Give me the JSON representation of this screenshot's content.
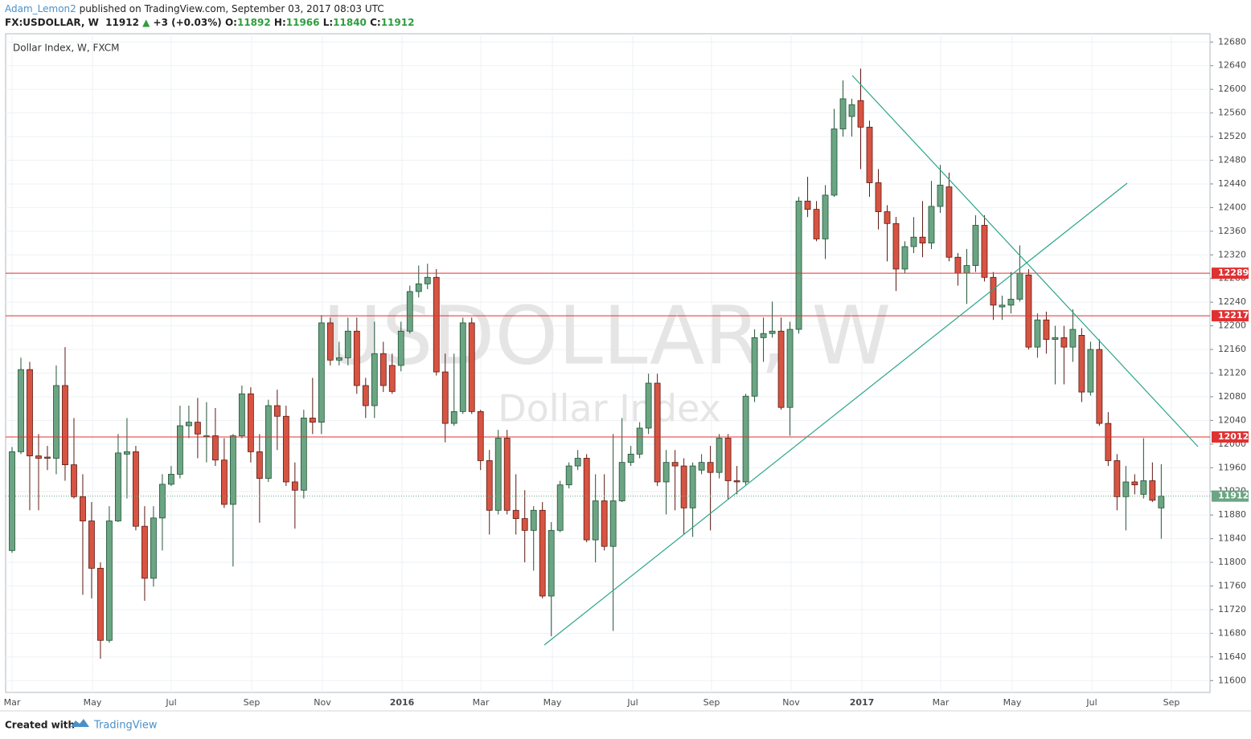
{
  "header": {
    "author": "Adam_Lemon2",
    "published": "published on TradingView.com, September 03, 2017 08:03 UTC",
    "symbol": "FX:USDOLLAR, W",
    "arrow": "▲",
    "change": "+3 (+0.03%)",
    "o_label": "O:",
    "h_label": "H:",
    "l_label": "L:",
    "c_label": "C:"
  },
  "footer": {
    "created": "Created with",
    "brand": "TradingView"
  },
  "chart_data": {
    "type": "candlestick",
    "legend": "Dollar Index, W, FXCM",
    "watermark": "USDOLLAR, W",
    "watermark_sub": "Dollar Index",
    "up_color": "#6ba583",
    "down_color": "#d75442",
    "x_axis_labels": [
      "Mar",
      "May",
      "Jul",
      "Sep",
      "Nov",
      "2016",
      "Mar",
      "May",
      "Jul",
      "Sep",
      "Nov",
      "2017",
      "Mar",
      "May",
      "Jul",
      "Sep"
    ],
    "ylim": [
      11580,
      12694
    ],
    "yticks": [
      11600,
      11640,
      11680,
      11720,
      11760,
      11800,
      11840,
      11880,
      11920,
      11960,
      12000,
      12040,
      12080,
      12120,
      12160,
      12200,
      12240,
      12280,
      12320,
      12360,
      12400,
      12440,
      12480,
      12520,
      12560,
      12600,
      12640,
      12680
    ],
    "grid": true,
    "hlines": [
      {
        "value": 12289,
        "color": "#e03131"
      },
      {
        "value": 12217,
        "color": "#e03131"
      },
      {
        "value": 12012,
        "color": "#e03131"
      }
    ],
    "open": [
      11820,
      11987,
      12126,
      11980,
      11978,
      11976,
      12099,
      11965,
      11911,
      11870,
      11790,
      11668,
      11870,
      11983,
      11987,
      11861,
      11773,
      11875,
      11932,
      11949,
      12031,
      12037,
      12013,
      12014,
      11973,
      11898,
      12014,
      12085,
      11987,
      11942,
      12065,
      12047,
      11936,
      11922,
      12044,
      12037,
      12205,
      12142,
      12146,
      12191,
      12099,
      12065,
      12153,
      12133,
      12133,
      12191,
      12258,
      12271,
      12282,
      12122,
      12035,
      12055,
      12205,
      12055,
      11972,
      11888,
      12010,
      11888,
      11874,
      11854,
      11888,
      11743,
      11854,
      11931,
      11963,
      11976,
      11838,
      11904,
      11827,
      11904,
      11969,
      11983,
      12027,
      12103,
      11936,
      11969,
      11963,
      11892,
      11956,
      11969,
      11952,
      12010,
      11938,
      11936,
      12081,
      12180,
      12187,
      12191,
      12062,
      12194,
      12411,
      12397,
      12347,
      12421,
      12533,
      12554,
      12581,
      12536,
      12442,
      12393,
      12373,
      12296,
      12334,
      12350,
      12340,
      12402,
      12435,
      12316,
      12289,
      12302,
      12370,
      12282,
      12232,
      12235,
      12245,
      12286,
      12164,
      12210,
      12177,
      12180,
      12164,
      12184,
      12088,
      12160,
      12035,
      11972,
      11911,
      11936,
      11915,
      11938,
      11892
    ],
    "high": [
      11995,
      12146,
      12139,
      12017,
      11997,
      12133,
      12164,
      12044,
      11949,
      11902,
      11800,
      11895,
      12017,
      12044,
      11997,
      11895,
      11895,
      11949,
      11963,
      12065,
      12065,
      12078,
      12071,
      12061,
      12010,
      12017,
      12099,
      12096,
      12017,
      12075,
      12092,
      12065,
      11969,
      12058,
      12112,
      12218,
      12214,
      12173,
      12214,
      12214,
      12112,
      12207,
      12173,
      12153,
      12207,
      12268,
      12302,
      12305,
      12296,
      12153,
      12153,
      12214,
      12214,
      12058,
      11990,
      12024,
      12024,
      11949,
      11922,
      11895,
      11902,
      11868,
      11938,
      11969,
      11990,
      11983,
      11949,
      11949,
      12017,
      12044,
      11997,
      12037,
      12119,
      12119,
      11990,
      11990,
      11976,
      11969,
      11983,
      11997,
      12017,
      12017,
      11963,
      12085,
      12194,
      12214,
      12241,
      12214,
      12207,
      12418,
      12452,
      12411,
      12438,
      12567,
      12615,
      12584,
      12635,
      12547,
      12465,
      12404,
      12384,
      12343,
      12384,
      12411,
      12445,
      12472,
      12459,
      12323,
      12330,
      12387,
      12387,
      12291,
      12251,
      12291,
      12336,
      12296,
      12221,
      12224,
      12200,
      12200,
      12228,
      12196,
      12173,
      12177,
      12054,
      11983,
      11963,
      11949,
      12010,
      11969,
      11966
    ],
    "low": [
      11816,
      11983,
      11888,
      11888,
      11956,
      11949,
      11938,
      11908,
      11745,
      11739,
      11637,
      11664,
      11868,
      11908,
      11854,
      11735,
      11759,
      11820,
      11929,
      11942,
      12010,
      11976,
      11969,
      11963,
      11892,
      11793,
      12010,
      11969,
      11867,
      11936,
      11990,
      11929,
      11857,
      11908,
      12017,
      12017,
      12133,
      12133,
      12133,
      12085,
      12044,
      12044,
      12088,
      12085,
      12123,
      12187,
      12248,
      12262,
      12116,
      12003,
      12031,
      12051,
      12051,
      11956,
      11847,
      11881,
      11881,
      11847,
      11800,
      11786,
      11739,
      11675,
      11851,
      11925,
      11956,
      11834,
      11800,
      11820,
      11684,
      11902,
      11963,
      11976,
      12017,
      11929,
      11881,
      11888,
      11847,
      11843,
      11949,
      11854,
      11942,
      11906,
      11915,
      11931,
      12071,
      12139,
      12180,
      12058,
      12014,
      12187,
      12384,
      12343,
      12313,
      12418,
      12520,
      12520,
      12465,
      12418,
      12363,
      12309,
      12259,
      12289,
      12323,
      12316,
      12330,
      12391,
      12309,
      12268,
      12237,
      12291,
      12275,
      12210,
      12210,
      12221,
      12241,
      12160,
      12146,
      12153,
      12101,
      12101,
      12139,
      12071,
      12082,
      12031,
      11963,
      11888,
      11854,
      11915,
      11908,
      11902,
      11840
    ],
    "close": [
      11987,
      12126,
      11980,
      11976,
      11976,
      12099,
      11965,
      11911,
      11870,
      11790,
      11668,
      11870,
      11985,
      11987,
      11861,
      11773,
      11875,
      11932,
      11949,
      12031,
      12037,
      12017,
      12014,
      11973,
      11898,
      12014,
      12085,
      11987,
      11942,
      12065,
      12047,
      11936,
      11922,
      12044,
      12037,
      12205,
      12142,
      12146,
      12191,
      12099,
      12065,
      12153,
      12099,
      12089,
      12191,
      12258,
      12271,
      12282,
      12122,
      12035,
      12055,
      12205,
      12055,
      11972,
      11888,
      12010,
      11888,
      11874,
      11854,
      11888,
      11743,
      11854,
      11931,
      11963,
      11976,
      11838,
      11904,
      11827,
      11904,
      11969,
      11983,
      12027,
      12103,
      11936,
      11969,
      11963,
      11892,
      11963,
      11969,
      11952,
      12010,
      11938,
      11936,
      12081,
      12180,
      12187,
      12191,
      12062,
      12194,
      12411,
      12397,
      12347,
      12421,
      12533,
      12584,
      12574,
      12536,
      12442,
      12393,
      12373,
      12296,
      12334,
      12350,
      12340,
      12402,
      12438,
      12316,
      12289,
      12302,
      12370,
      12282,
      12235,
      12235,
      12245,
      12289,
      12164,
      12210,
      12177,
      12180,
      12164,
      12194,
      12088,
      12160,
      12035,
      11972,
      11911,
      11936,
      11931,
      11938,
      11905,
      11912
    ]
  }
}
